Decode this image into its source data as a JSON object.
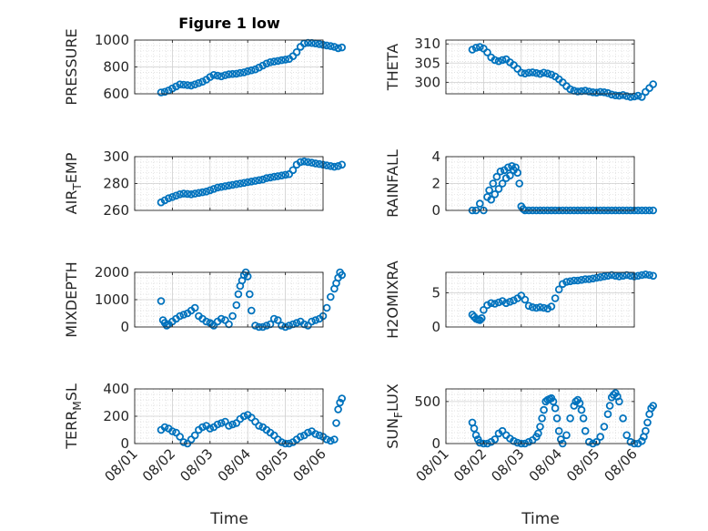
{
  "figure": {
    "title": "Figure 1 low",
    "xlabel": "Time",
    "x_ticks": [
      "08/01",
      "08/02",
      "08/03",
      "08/04",
      "08/05",
      "08/06"
    ],
    "marker_color": "#0072BD",
    "grid_color": "#d9d9d9"
  },
  "chart_data": [
    {
      "type": "scatter",
      "name": "pressure",
      "ylabel_main": "PRESSURE",
      "ylabel_sub": "",
      "ylabel_tail": "",
      "ylim": [
        600,
        1000
      ],
      "yticks": [
        600,
        800,
        1000
      ],
      "x": [
        0.7,
        0.8,
        0.9,
        1.0,
        1.1,
        1.2,
        1.3,
        1.4,
        1.5,
        1.6,
        1.7,
        1.8,
        1.9,
        2.0,
        2.1,
        2.2,
        2.3,
        2.4,
        2.5,
        2.6,
        2.7,
        2.8,
        2.9,
        3.0,
        3.1,
        3.2,
        3.3,
        3.4,
        3.5,
        3.6,
        3.7,
        3.8,
        3.9,
        4.0,
        4.1,
        4.2,
        4.3,
        4.4,
        4.5,
        4.6,
        4.7,
        4.8,
        4.9,
        5.0,
        5.1,
        5.2,
        5.3,
        5.4,
        5.5
      ],
      "y": [
        610,
        615,
        625,
        640,
        655,
        670,
        668,
        665,
        662,
        670,
        680,
        690,
        705,
        725,
        740,
        735,
        730,
        738,
        745,
        748,
        750,
        755,
        760,
        768,
        775,
        782,
        795,
        810,
        825,
        835,
        840,
        845,
        850,
        855,
        860,
        880,
        910,
        950,
        975,
        980,
        978,
        975,
        970,
        965,
        960,
        955,
        950,
        940,
        945
      ]
    },
    {
      "type": "scatter",
      "name": "theta",
      "ylabel_main": "THETA",
      "ylabel_sub": "",
      "ylabel_tail": "",
      "ylim": [
        297,
        311
      ],
      "yticks": [
        300,
        305,
        310
      ],
      "x": [
        0.7,
        0.8,
        0.9,
        1.0,
        1.1,
        1.2,
        1.3,
        1.4,
        1.5,
        1.6,
        1.7,
        1.8,
        1.9,
        2.0,
        2.1,
        2.2,
        2.3,
        2.4,
        2.5,
        2.6,
        2.7,
        2.8,
        2.9,
        3.0,
        3.1,
        3.2,
        3.3,
        3.4,
        3.5,
        3.6,
        3.7,
        3.8,
        3.9,
        4.0,
        4.1,
        4.2,
        4.3,
        4.4,
        4.5,
        4.6,
        4.7,
        4.8,
        4.9,
        5.0,
        5.1,
        5.2,
        5.3,
        5.4,
        5.5
      ],
      "y": [
        308.5,
        309,
        309.2,
        308.8,
        307.8,
        306.5,
        305.8,
        305.5,
        305.8,
        306,
        305.2,
        304.5,
        303.5,
        302.5,
        302.3,
        302.5,
        302.6,
        302.4,
        302.2,
        302.5,
        302.3,
        302,
        301.5,
        300.8,
        300,
        299,
        298.2,
        297.8,
        297.6,
        297.7,
        297.8,
        297.6,
        297.4,
        297.3,
        297.5,
        297.4,
        297.2,
        296.8,
        296.6,
        296.5,
        296.7,
        296.4,
        296.2,
        296.3,
        296.5,
        296.2,
        297.5,
        298.5,
        299.5
      ]
    },
    {
      "type": "scatter",
      "name": "air_temp",
      "ylabel_main": "AIR",
      "ylabel_sub": "T",
      "ylabel_tail": "EMP",
      "ylim": [
        260,
        300
      ],
      "yticks": [
        260,
        280,
        300
      ],
      "x": [
        0.7,
        0.8,
        0.9,
        1.0,
        1.1,
        1.2,
        1.3,
        1.4,
        1.5,
        1.6,
        1.7,
        1.8,
        1.9,
        2.0,
        2.1,
        2.2,
        2.3,
        2.4,
        2.5,
        2.6,
        2.7,
        2.8,
        2.9,
        3.0,
        3.1,
        3.2,
        3.3,
        3.4,
        3.5,
        3.6,
        3.7,
        3.8,
        3.9,
        4.0,
        4.1,
        4.2,
        4.3,
        4.4,
        4.5,
        4.6,
        4.7,
        4.8,
        4.9,
        5.0,
        5.1,
        5.2,
        5.3,
        5.4,
        5.5
      ],
      "y": [
        266,
        267.5,
        269,
        270,
        271,
        272,
        272.5,
        272.3,
        272,
        272.5,
        273,
        273.5,
        274,
        275,
        276,
        277,
        277.5,
        278,
        278.5,
        279,
        279.5,
        280,
        280.5,
        281,
        281.5,
        282,
        282.5,
        283,
        284,
        284.5,
        285,
        285.5,
        286,
        286.5,
        287,
        290,
        294,
        296,
        296.5,
        296,
        295.5,
        295,
        294.5,
        294,
        293.5,
        293,
        292.5,
        293,
        294
      ]
    },
    {
      "type": "scatter",
      "name": "rainfall",
      "ylabel_main": "RAINFALL",
      "ylabel_sub": "",
      "ylabel_tail": "",
      "ylim": [
        0,
        4
      ],
      "yticks": [
        0,
        2,
        4
      ],
      "x": [
        0.7,
        0.8,
        0.9,
        1.0,
        1.1,
        1.15,
        1.2,
        1.25,
        1.3,
        1.35,
        1.4,
        1.45,
        1.5,
        1.55,
        1.6,
        1.65,
        1.7,
        1.75,
        1.8,
        1.85,
        1.9,
        1.95,
        2.0,
        2.05,
        2.1,
        2.2,
        2.3,
        2.4,
        2.5,
        2.6,
        2.7,
        2.8,
        2.9,
        3.0,
        3.1,
        3.2,
        3.3,
        3.4,
        3.5,
        3.6,
        3.7,
        3.8,
        3.9,
        4.0,
        4.1,
        4.2,
        4.3,
        4.4,
        4.5,
        4.6,
        4.7,
        4.8,
        4.9,
        5.0,
        5.1,
        5.2,
        5.3,
        5.4,
        5.5
      ],
      "y": [
        0,
        0,
        0.5,
        0,
        1.0,
        1.5,
        0.8,
        2.0,
        1.2,
        2.5,
        1.6,
        2.9,
        2.0,
        3.0,
        2.4,
        3.2,
        2.6,
        3.3,
        3.0,
        3.2,
        2.8,
        2.0,
        0.3,
        0.1,
        0,
        0,
        0,
        0,
        0,
        0,
        0,
        0,
        0,
        0,
        0,
        0,
        0,
        0,
        0,
        0,
        0,
        0,
        0,
        0,
        0,
        0,
        0,
        0,
        0,
        0,
        0,
        0,
        0,
        0,
        0,
        0,
        0,
        0,
        0
      ]
    },
    {
      "type": "scatter",
      "name": "mixdepth",
      "ylabel_main": "MIXDEPTH",
      "ylabel_sub": "",
      "ylabel_tail": "",
      "ylim": [
        0,
        2000
      ],
      "yticks": [
        0,
        1000,
        2000
      ],
      "x": [
        0.7,
        0.75,
        0.8,
        0.85,
        0.9,
        1.0,
        1.1,
        1.2,
        1.3,
        1.4,
        1.5,
        1.6,
        1.7,
        1.8,
        1.9,
        2.0,
        2.05,
        2.1,
        2.2,
        2.3,
        2.4,
        2.5,
        2.6,
        2.7,
        2.75,
        2.8,
        2.85,
        2.9,
        2.95,
        3.0,
        3.05,
        3.1,
        3.2,
        3.3,
        3.4,
        3.5,
        3.6,
        3.7,
        3.8,
        3.9,
        4.0,
        4.1,
        4.2,
        4.3,
        4.4,
        4.5,
        4.6,
        4.7,
        4.8,
        4.9,
        5.0,
        5.1,
        5.2,
        5.3,
        5.35,
        5.4,
        5.45,
        5.5
      ],
      "y": [
        950,
        250,
        150,
        50,
        100,
        200,
        300,
        400,
        450,
        500,
        600,
        700,
        400,
        300,
        200,
        150,
        100,
        50,
        200,
        300,
        250,
        100,
        400,
        800,
        1200,
        1500,
        1700,
        1900,
        2000,
        1850,
        1200,
        600,
        50,
        0,
        0,
        50,
        100,
        300,
        250,
        50,
        0,
        50,
        100,
        150,
        200,
        100,
        50,
        200,
        250,
        300,
        400,
        700,
        1100,
        1400,
        1600,
        1800,
        2000,
        1900
      ]
    },
    {
      "type": "scatter",
      "name": "h2omixra",
      "ylabel_main": "H2OMIXRA",
      "ylabel_sub": "",
      "ylabel_tail": "",
      "ylim": [
        0,
        8
      ],
      "yticks": [
        0,
        5
      ],
      "x": [
        0.7,
        0.75,
        0.8,
        0.85,
        0.9,
        0.95,
        1.0,
        1.1,
        1.2,
        1.3,
        1.4,
        1.5,
        1.6,
        1.7,
        1.8,
        1.9,
        2.0,
        2.1,
        2.2,
        2.3,
        2.4,
        2.5,
        2.6,
        2.7,
        2.8,
        2.9,
        3.0,
        3.1,
        3.2,
        3.3,
        3.4,
        3.5,
        3.6,
        3.7,
        3.8,
        3.9,
        4.0,
        4.1,
        4.2,
        4.3,
        4.4,
        4.5,
        4.6,
        4.7,
        4.8,
        4.9,
        5.0,
        5.1,
        5.2,
        5.3,
        5.4,
        5.5
      ],
      "y": [
        1.8,
        1.5,
        1.2,
        1.1,
        1.0,
        1.3,
        2.5,
        3.2,
        3.5,
        3.4,
        3.6,
        3.8,
        3.5,
        3.7,
        3.9,
        4.2,
        4.6,
        4.0,
        3.1,
        2.9,
        2.8,
        2.9,
        2.8,
        2.7,
        3.0,
        4.2,
        5.5,
        6.3,
        6.6,
        6.7,
        6.8,
        6.8,
        6.9,
        7.0,
        7.0,
        7.1,
        7.2,
        7.3,
        7.4,
        7.5,
        7.6,
        7.5,
        7.4,
        7.5,
        7.6,
        7.5,
        7.4,
        7.5,
        7.6,
        7.7,
        7.6,
        7.5
      ]
    },
    {
      "type": "scatter",
      "name": "terr_msl",
      "ylabel_main": "TERR",
      "ylabel_sub": "M",
      "ylabel_tail": "SL",
      "ylim": [
        0,
        400
      ],
      "yticks": [
        0,
        200,
        400
      ],
      "x": [
        0.7,
        0.8,
        0.9,
        1.0,
        1.1,
        1.2,
        1.3,
        1.4,
        1.5,
        1.6,
        1.7,
        1.8,
        1.9,
        2.0,
        2.1,
        2.2,
        2.3,
        2.4,
        2.5,
        2.6,
        2.7,
        2.8,
        2.9,
        3.0,
        3.1,
        3.2,
        3.3,
        3.4,
        3.5,
        3.6,
        3.7,
        3.8,
        3.9,
        4.0,
        4.1,
        4.2,
        4.3,
        4.4,
        4.5,
        4.6,
        4.7,
        4.8,
        4.9,
        5.0,
        5.1,
        5.2,
        5.3,
        5.35,
        5.4,
        5.45,
        5.5
      ],
      "y": [
        100,
        120,
        110,
        90,
        80,
        50,
        10,
        0,
        30,
        60,
        100,
        120,
        130,
        110,
        120,
        140,
        150,
        160,
        130,
        140,
        150,
        180,
        200,
        210,
        190,
        160,
        130,
        120,
        100,
        80,
        60,
        30,
        10,
        0,
        0,
        10,
        30,
        50,
        60,
        80,
        90,
        70,
        60,
        50,
        30,
        20,
        30,
        150,
        250,
        300,
        330
      ]
    },
    {
      "type": "scatter",
      "name": "sun_flux",
      "ylabel_main": "SUN",
      "ylabel_sub": "F",
      "ylabel_tail": "LUX",
      "ylim": [
        0,
        650
      ],
      "yticks": [
        0,
        500
      ],
      "x": [
        0.7,
        0.75,
        0.8,
        0.85,
        0.9,
        1.0,
        1.1,
        1.2,
        1.3,
        1.4,
        1.5,
        1.6,
        1.7,
        1.8,
        1.9,
        2.0,
        2.1,
        2.2,
        2.3,
        2.4,
        2.45,
        2.5,
        2.55,
        2.6,
        2.65,
        2.7,
        2.75,
        2.8,
        2.85,
        2.9,
        2.95,
        3.0,
        3.05,
        3.1,
        3.2,
        3.3,
        3.4,
        3.45,
        3.5,
        3.55,
        3.6,
        3.65,
        3.7,
        3.8,
        3.9,
        4.0,
        4.1,
        4.2,
        4.3,
        4.35,
        4.4,
        4.45,
        4.5,
        4.55,
        4.6,
        4.7,
        4.8,
        4.9,
        5.0,
        5.1,
        5.2,
        5.25,
        5.3,
        5.35,
        5.4,
        5.45,
        5.5
      ],
      "y": [
        250,
        180,
        100,
        50,
        10,
        0,
        0,
        20,
        50,
        120,
        150,
        100,
        60,
        30,
        10,
        0,
        0,
        20,
        40,
        80,
        120,
        200,
        300,
        400,
        500,
        520,
        530,
        540,
        500,
        420,
        300,
        150,
        50,
        0,
        100,
        300,
        450,
        500,
        520,
        480,
        400,
        300,
        150,
        20,
        0,
        20,
        80,
        200,
        350,
        450,
        550,
        580,
        600,
        560,
        500,
        300,
        100,
        20,
        0,
        0,
        30,
        80,
        150,
        250,
        350,
        420,
        450
      ]
    }
  ]
}
